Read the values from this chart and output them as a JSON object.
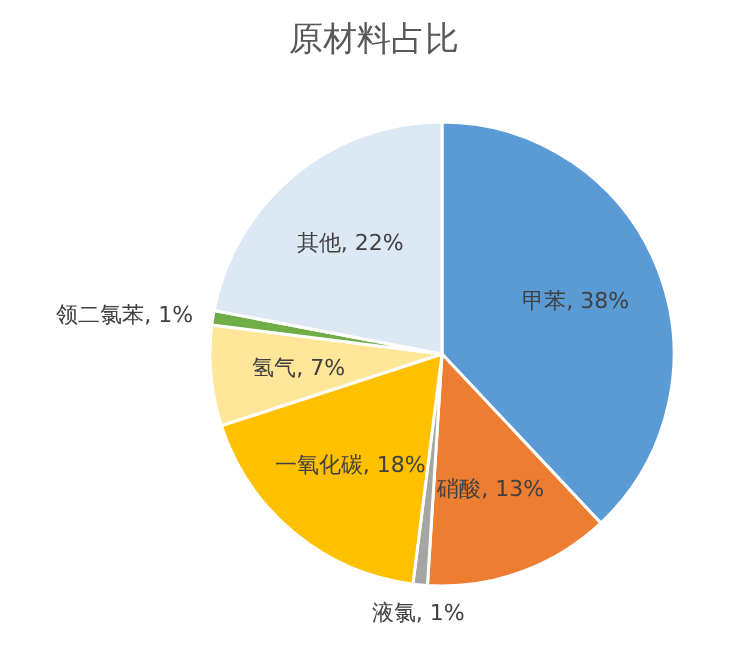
{
  "chart_data": {
    "type": "pie",
    "title": "原材料占比",
    "categories": [
      "甲苯",
      "硝酸",
      "液氯",
      "一氧化碳",
      "氢气",
      "领二氯苯",
      "其他"
    ],
    "values": [
      38,
      13,
      1,
      18,
      7,
      1,
      22
    ],
    "value_labels": [
      "38%",
      "13%",
      "1%",
      "18%",
      "7%",
      "1%",
      "22%"
    ],
    "colors": [
      "#5b9bd5",
      "#ed7d31",
      "#a5a5a5",
      "#ffc000",
      "#ffe699",
      "#70ad47",
      "#dde8f5"
    ],
    "legend": false
  }
}
